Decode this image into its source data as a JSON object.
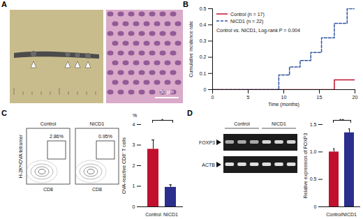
{
  "panel_labels": [
    "A",
    "B",
    "C",
    "D"
  ],
  "panel_a": {
    "scale_bar": "50 μm"
  },
  "panel_c_flow": {
    "groups": [
      "Control",
      "NICD1"
    ],
    "gate_percent_labels": [
      "2.86%",
      "0.95%"
    ],
    "x_label": "CD8",
    "y_label": "H-2Kᵇ/OVA tetramer"
  },
  "panel_d_gel": {
    "groups": [
      "Control",
      "NICD1"
    ],
    "bands": [
      "FOXP3",
      "ACTB"
    ]
  },
  "chart_data": [
    {
      "type": "line",
      "x_label": "Time (months)",
      "y_label": "Cumulative incidence rate",
      "annotation": "Control vs. NICD1, Log-rank P = 0.004",
      "x": [
        0,
        9.3,
        10.8,
        12.3,
        13.8,
        15.3,
        17.1,
        18.9,
        20
      ],
      "series": [
        {
          "name": "Control (n = 17)",
          "color": "#c0102e",
          "line_style": "solid",
          "values": [
            0,
            0,
            0,
            0,
            0,
            0,
            0.06,
            0.06,
            0.06
          ]
        },
        {
          "name": "NICD1 (n = 22)",
          "color": "#2f55a4",
          "line_style": "dashed",
          "values": [
            0,
            0.09,
            0.14,
            0.18,
            0.23,
            0.32,
            0.41,
            0.5,
            0.5
          ]
        }
      ],
      "xlim": [
        0,
        20
      ],
      "xticks": [
        0,
        5,
        10,
        15,
        20
      ],
      "ylim": [
        0,
        0.5
      ],
      "yticks": [
        0,
        0.1,
        0.2,
        0.3,
        0.4,
        0.5
      ],
      "legend": "top-left"
    },
    {
      "type": "bar",
      "y_label": "OVA-reactive CD8⁺ T cells",
      "y_unit": "%",
      "annotation": "*",
      "categories": [
        "Control",
        "NICD1"
      ],
      "values": [
        2.8,
        0.95
      ],
      "errors": [
        0.45,
        0.12
      ],
      "colors": [
        "#c0102e",
        "#2b2e8c"
      ],
      "ylim": [
        0,
        4
      ],
      "yticks": [
        0,
        1,
        2,
        3,
        4
      ]
    },
    {
      "type": "bar",
      "y_label": "Relative expression of FOXP3",
      "annotation": "**",
      "categories": [
        "Control",
        "NICD1"
      ],
      "values": [
        1.0,
        1.35
      ],
      "errors": [
        0.06,
        0.07
      ],
      "colors": [
        "#c0102e",
        "#2b2e8c"
      ],
      "ylim": [
        0,
        1.5
      ],
      "yticks": [
        0,
        0.5,
        {
          "value": 1,
          "label": "1.0"
        },
        1.5
      ]
    }
  ]
}
